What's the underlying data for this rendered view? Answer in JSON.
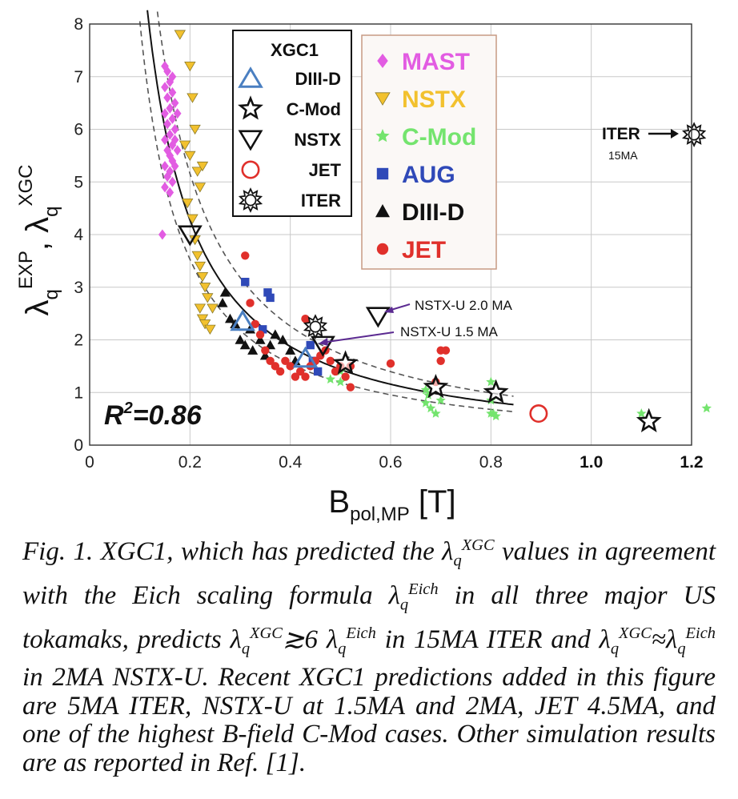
{
  "chart_data": {
    "type": "scatter",
    "xlabel": "B",
    "xlabel_sub": "pol,MP",
    "xlabel_unit": " [T]",
    "ylabel_parts": [
      "λ",
      "q",
      "EXP",
      ", λ",
      "q",
      "XGC"
    ],
    "xlim": [
      0,
      1.2
    ],
    "ylim": [
      0,
      8
    ],
    "xticks": [
      "0",
      "0.2",
      "0.4",
      "0.6",
      "0.8",
      "1.0",
      "1.2"
    ],
    "yticks": [
      "0",
      "1",
      "2",
      "3",
      "4",
      "5",
      "6",
      "7",
      "8"
    ],
    "grid": true,
    "r2_label": "R",
    "r2_value": "=0.86",
    "xgc_legend": {
      "title": "XGC1",
      "entries": [
        {
          "name": "DIII-D",
          "marker": "triangle-open",
          "color": "#4a7fc1"
        },
        {
          "name": "C-Mod",
          "marker": "star-open",
          "color": "#111111"
        },
        {
          "name": "NSTX",
          "marker": "triangle-down-open",
          "color": "#111111"
        },
        {
          "name": "JET",
          "marker": "circle-open",
          "color": "#e0302b"
        },
        {
          "name": "ITER",
          "marker": "sun-open",
          "color": "#111111"
        }
      ]
    },
    "exp_legend": {
      "entries": [
        {
          "name": "MAST",
          "marker": "diamond",
          "color": "#e25ce2"
        },
        {
          "name": "NSTX",
          "marker": "triangle-down",
          "color": "#f2c12e"
        },
        {
          "name": "C-Mod",
          "marker": "star",
          "color": "#74e46e"
        },
        {
          "name": "AUG",
          "marker": "square",
          "color": "#2f49b8"
        },
        {
          "name": "DIII-D",
          "marker": "triangle",
          "color": "#111111"
        },
        {
          "name": "JET",
          "marker": "circle",
          "color": "#e0302b"
        }
      ]
    },
    "annotations": [
      {
        "text": "NSTX-U 2.0 MA",
        "x": 0.575,
        "y": 2.45
      },
      {
        "text": "NSTX-U 1.5 MA",
        "x": 0.455,
        "y": 1.9
      },
      {
        "text": "ITER",
        "x": 1.145,
        "y": 5.85
      },
      {
        "text": "15MA",
        "x": 1.13,
        "y": 5.5
      }
    ],
    "xgc_series": [
      {
        "name": "DIII-D",
        "points": [
          [
            0.305,
            2.35
          ],
          [
            0.43,
            1.65
          ]
        ]
      },
      {
        "name": "C-Mod",
        "points": [
          [
            0.51,
            1.55
          ],
          [
            0.69,
            1.1
          ],
          [
            0.81,
            1.0
          ],
          [
            1.115,
            0.45
          ]
        ]
      },
      {
        "name": "NSTX",
        "points": [
          [
            0.2,
            4.0
          ],
          [
            0.465,
            1.9
          ],
          [
            0.575,
            2.45
          ]
        ]
      },
      {
        "name": "JET",
        "points": [
          [
            0.895,
            0.6
          ]
        ]
      },
      {
        "name": "ITER",
        "points": [
          [
            0.45,
            2.25
          ],
          [
            1.205,
            5.9
          ]
        ]
      }
    ],
    "exp_series": [
      {
        "name": "MAST",
        "points": [
          [
            0.145,
            4.0
          ],
          [
            0.15,
            4.9
          ],
          [
            0.15,
            5.3
          ],
          [
            0.15,
            5.8
          ],
          [
            0.15,
            6.3
          ],
          [
            0.15,
            6.8
          ],
          [
            0.15,
            7.2
          ],
          [
            0.155,
            5.1
          ],
          [
            0.155,
            5.6
          ],
          [
            0.155,
            6.1
          ],
          [
            0.155,
            6.6
          ],
          [
            0.155,
            7.1
          ],
          [
            0.16,
            4.8
          ],
          [
            0.16,
            5.2
          ],
          [
            0.16,
            5.5
          ],
          [
            0.16,
            5.9
          ],
          [
            0.16,
            6.4
          ],
          [
            0.16,
            6.9
          ],
          [
            0.165,
            5.0
          ],
          [
            0.165,
            5.4
          ],
          [
            0.165,
            5.7
          ],
          [
            0.165,
            6.2
          ],
          [
            0.165,
            6.7
          ],
          [
            0.165,
            7.0
          ],
          [
            0.17,
            5.3
          ],
          [
            0.17,
            5.8
          ],
          [
            0.17,
            6.0
          ],
          [
            0.17,
            6.5
          ],
          [
            0.175,
            5.6
          ],
          [
            0.175,
            6.3
          ]
        ]
      },
      {
        "name": "NSTX",
        "points": [
          [
            0.18,
            7.8
          ],
          [
            0.2,
            7.2
          ],
          [
            0.205,
            6.6
          ],
          [
            0.21,
            6.0
          ],
          [
            0.19,
            5.7
          ],
          [
            0.2,
            5.5
          ],
          [
            0.215,
            5.2
          ],
          [
            0.22,
            4.9
          ],
          [
            0.225,
            5.3
          ],
          [
            0.195,
            4.6
          ],
          [
            0.205,
            4.3
          ],
          [
            0.21,
            3.9
          ],
          [
            0.215,
            3.6
          ],
          [
            0.22,
            3.4
          ],
          [
            0.225,
            3.2
          ],
          [
            0.23,
            3.0
          ],
          [
            0.235,
            2.8
          ],
          [
            0.22,
            2.6
          ],
          [
            0.225,
            2.4
          ],
          [
            0.23,
            2.3
          ],
          [
            0.24,
            2.2
          ],
          [
            0.245,
            2.6
          ]
        ]
      },
      {
        "name": "C-Mod",
        "points": [
          [
            0.48,
            1.25
          ],
          [
            0.5,
            1.4
          ],
          [
            0.5,
            1.2
          ],
          [
            0.67,
            1.05
          ],
          [
            0.67,
            0.8
          ],
          [
            0.675,
            0.95
          ],
          [
            0.68,
            0.7
          ],
          [
            0.69,
            0.6
          ],
          [
            0.7,
            0.85
          ],
          [
            0.8,
            1.2
          ],
          [
            0.8,
            0.85
          ],
          [
            0.8,
            0.6
          ],
          [
            0.805,
            0.6
          ],
          [
            0.81,
            0.55
          ],
          [
            1.1,
            0.6
          ],
          [
            1.23,
            0.7
          ]
        ]
      },
      {
        "name": "AUG",
        "points": [
          [
            0.31,
            3.1
          ],
          [
            0.355,
            2.9
          ],
          [
            0.36,
            2.8
          ],
          [
            0.345,
            2.2
          ],
          [
            0.44,
            1.9
          ],
          [
            0.445,
            1.6
          ],
          [
            0.455,
            1.4
          ]
        ]
      },
      {
        "name": "DIII-D",
        "points": [
          [
            0.265,
            2.7
          ],
          [
            0.27,
            2.9
          ],
          [
            0.28,
            2.4
          ],
          [
            0.29,
            2.3
          ],
          [
            0.3,
            2.0
          ],
          [
            0.31,
            1.9
          ],
          [
            0.32,
            2.2
          ],
          [
            0.325,
            1.8
          ],
          [
            0.34,
            2.0
          ],
          [
            0.35,
            1.7
          ],
          [
            0.36,
            1.9
          ],
          [
            0.37,
            2.1
          ],
          [
            0.385,
            2.0
          ],
          [
            0.4,
            1.8
          ],
          [
            0.41,
            1.6
          ]
        ]
      },
      {
        "name": "JET",
        "points": [
          [
            0.31,
            3.6
          ],
          [
            0.32,
            2.7
          ],
          [
            0.33,
            2.3
          ],
          [
            0.34,
            2.1
          ],
          [
            0.35,
            1.8
          ],
          [
            0.36,
            1.6
          ],
          [
            0.37,
            1.5
          ],
          [
            0.38,
            1.4
          ],
          [
            0.39,
            1.6
          ],
          [
            0.4,
            1.5
          ],
          [
            0.41,
            1.3
          ],
          [
            0.42,
            1.4
          ],
          [
            0.43,
            1.3
          ],
          [
            0.44,
            1.5
          ],
          [
            0.45,
            1.6
          ],
          [
            0.46,
            1.7
          ],
          [
            0.47,
            1.8
          ],
          [
            0.48,
            1.6
          ],
          [
            0.49,
            1.4
          ],
          [
            0.5,
            1.5
          ],
          [
            0.51,
            1.3
          ],
          [
            0.52,
            1.5
          ],
          [
            0.52,
            1.1
          ],
          [
            0.6,
            1.55
          ],
          [
            0.69,
            1.2
          ],
          [
            0.7,
            1.6
          ],
          [
            0.7,
            1.8
          ],
          [
            0.71,
            1.8
          ],
          [
            0.44,
            2.3
          ],
          [
            0.43,
            2.4
          ]
        ]
      }
    ],
    "fit_curves": [
      {
        "name": "fit",
        "style": "solid",
        "coefficient": 0.63,
        "exponent": -1.19
      },
      {
        "name": "upper",
        "style": "dashed",
        "coefficient": 0.76,
        "exponent": -1.19
      },
      {
        "name": "lower",
        "style": "dashed",
        "coefficient": 0.52,
        "exponent": -1.19
      }
    ]
  },
  "caption": {
    "t1": "Fig. 1. XGC1, which has predicted the λ",
    "s1": "q",
    "p1": "XGC",
    "t2": " values in agreement with the Eich scaling formula  λ",
    "s2": "q",
    "p2": "Eich",
    "t3": " in all three major US tokamaks, predicts λ",
    "s3": "q",
    "p3": "XGC",
    "t4": "≳6 λ",
    "s4": "q",
    "p4": "Eich",
    "t5": " in 15MA ITER and λ",
    "s5": "q",
    "p5": "XGC",
    "t6": "≈λ",
    "s6": "q",
    "p6": "Eich",
    "t7": " in 2MA NSTX-U. Recent XGC1 predictions added in this figure are 5MA ITER, NSTX-U at 1.5MA and 2MA, JET 4.5MA, and one of the highest B-field C-Mod cases. Other simulation results are as reported in Ref. [1]."
  }
}
